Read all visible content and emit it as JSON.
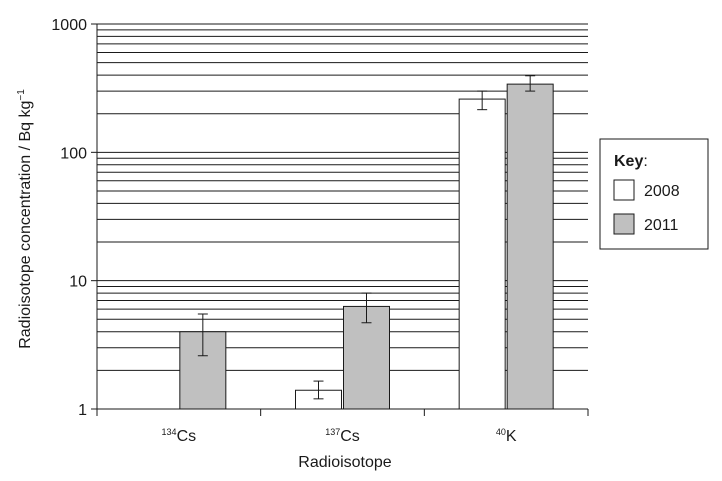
{
  "chart_data": {
    "type": "bar",
    "scale": "log",
    "ylim": [
      1,
      1000
    ],
    "yticks": [
      "1",
      "10",
      "100",
      "1000"
    ],
    "grid": true,
    "ylabel": "Radioisotope concentration / Bq kg",
    "ylabel_superscript": "−1",
    "xlabel": "Radioisotope",
    "categories": [
      {
        "sup": "134",
        "label": "Cs"
      },
      {
        "sup": "137",
        "label": "Cs"
      },
      {
        "sup": "40",
        "label": "K"
      }
    ],
    "series": [
      {
        "name": "2008",
        "color": "#ffffff",
        "values": [
          null,
          1.4,
          260
        ],
        "err_low": [
          null,
          1.2,
          215
        ],
        "err_high": [
          null,
          1.65,
          300
        ]
      },
      {
        "name": "2011",
        "color": "#c0c0c0",
        "values": [
          4.0,
          6.3,
          340
        ],
        "err_low": [
          2.6,
          4.7,
          300
        ],
        "err_high": [
          5.5,
          8.0,
          395
        ]
      }
    ],
    "legend": {
      "title": "Key",
      "title_suffix": ":",
      "position": "right"
    }
  }
}
